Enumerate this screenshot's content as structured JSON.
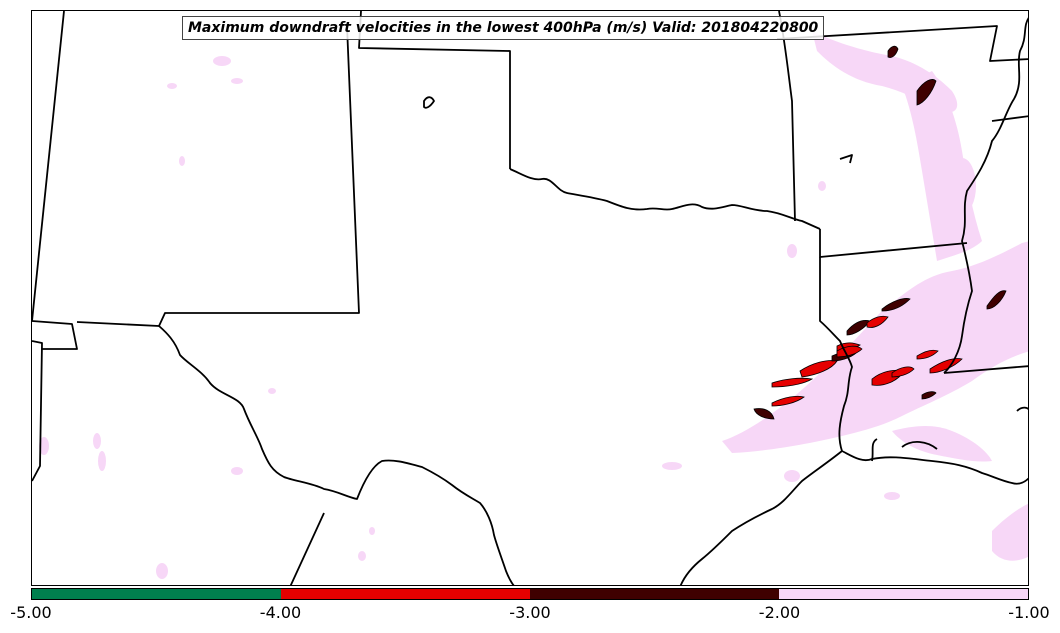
{
  "title": "Maximum downdraft velocities in the lowest 400hPa (m/s) Valid: 201804220800",
  "colorbar": {
    "ticks": [
      "-5.00",
      "-4.00",
      "-3.00",
      "-2.00",
      "-1.00"
    ],
    "bins": [
      {
        "range": [
          -5.0,
          -4.0
        ],
        "color": "#007f4e"
      },
      {
        "range": [
          -4.0,
          -3.0
        ],
        "color": "#e50000"
      },
      {
        "range": [
          -3.0,
          -2.0
        ],
        "color": "#3f0000"
      },
      {
        "range": [
          -2.0,
          -1.0
        ],
        "color": "#f7d7f7"
      }
    ]
  },
  "colors": {
    "light_downdraft": "#f7d7f7",
    "moderate_downdraft": "#3f0000",
    "strong_downdraft": "#e50000",
    "boundaries": "#000000"
  }
}
